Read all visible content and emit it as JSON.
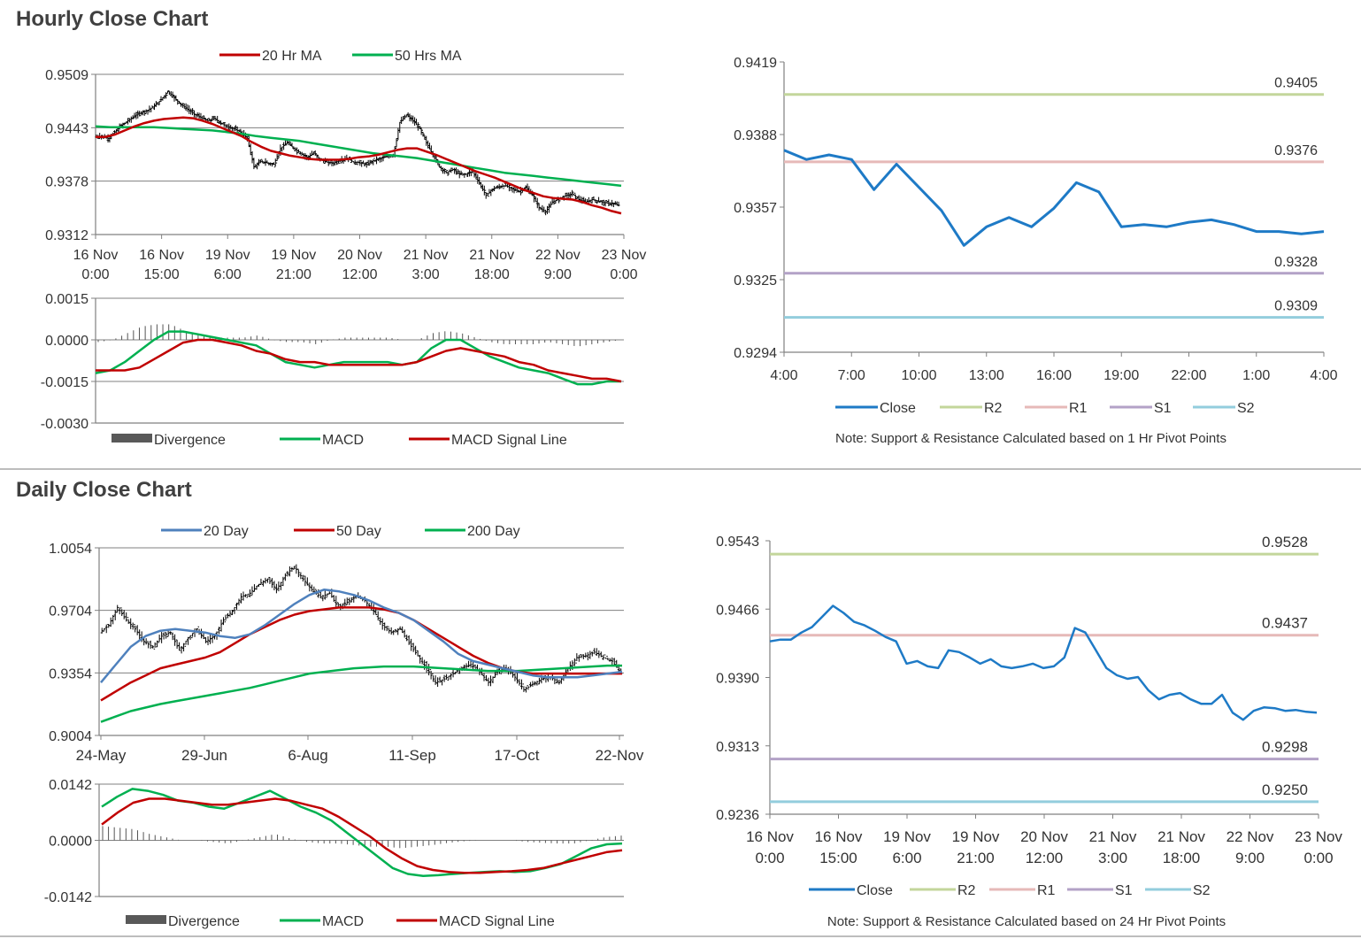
{
  "sections": {
    "hourly_title": "Hourly Close Chart",
    "daily_title": "Daily Close Chart"
  },
  "colors": {
    "red": "#c00000",
    "green": "#00b050",
    "blue": "#4f81bd",
    "closeBlue": "#1e7ac6",
    "r2": "#c3d69b",
    "r1": "#e6b9b8",
    "s1": "#b3a2c7",
    "s2": "#93cddd",
    "grid": "#808080"
  },
  "chart_data": [
    {
      "id": "hourly_price",
      "type": "line",
      "legend": [
        "20 Hr MA",
        "50 Hrs MA"
      ],
      "y_ticks": [
        "0.9509",
        "0.9443",
        "0.9378",
        "0.9312"
      ],
      "ylim": [
        0.9312,
        0.9509
      ],
      "x_ticks": [
        [
          "16 Nov",
          "0:00"
        ],
        [
          "16 Nov",
          "15:00"
        ],
        [
          "19 Nov",
          "6:00"
        ],
        [
          "19 Nov",
          "21:00"
        ],
        [
          "20 Nov",
          "12:00"
        ],
        [
          "21 Nov",
          "3:00"
        ],
        [
          "21 Nov",
          "18:00"
        ],
        [
          "22 Nov",
          "9:00"
        ],
        [
          "23 Nov",
          "0:00"
        ]
      ],
      "series": [
        {
          "name": "Close",
          "values": [
            0.9432,
            0.9433,
            0.943,
            0.9438,
            0.9446,
            0.9452,
            0.9458,
            0.9462,
            0.9465,
            0.947,
            0.9478,
            0.9488,
            0.948,
            0.9472,
            0.9466,
            0.946,
            0.9456,
            0.9452,
            0.9455,
            0.9449,
            0.9445,
            0.9442,
            0.9438,
            0.943,
            0.9395,
            0.9402,
            0.94,
            0.9398,
            0.9418,
            0.9425,
            0.9418,
            0.9412,
            0.9407,
            0.9412,
            0.9404,
            0.9401,
            0.94,
            0.9403,
            0.9406,
            0.9401,
            0.94,
            0.9398,
            0.9403,
            0.9405,
            0.9408,
            0.941,
            0.945,
            0.9459,
            0.9452,
            0.9442,
            0.9425,
            0.941,
            0.9395,
            0.9388,
            0.9392,
            0.9386,
            0.9386,
            0.939,
            0.9375,
            0.936,
            0.9368,
            0.9371,
            0.9372,
            0.9368,
            0.9365,
            0.937,
            0.936,
            0.9345,
            0.934,
            0.9352,
            0.9356,
            0.936,
            0.9362,
            0.9355,
            0.9352,
            0.9355,
            0.9353,
            0.9351,
            0.935,
            0.9348
          ]
        },
        {
          "name": "20 Hr MA",
          "values": [
            0.9432,
            0.9432,
            0.9435,
            0.944,
            0.9445,
            0.9449,
            0.9452,
            0.9454,
            0.9455,
            0.9456,
            0.9455,
            0.9452,
            0.9448,
            0.9443,
            0.9438,
            0.9433,
            0.9426,
            0.942,
            0.9415,
            0.9412,
            0.9409,
            0.9407,
            0.9405,
            0.9404,
            0.9404,
            0.9404,
            0.9405,
            0.9407,
            0.9408,
            0.941,
            0.9413,
            0.9416,
            0.9418,
            0.9418,
            0.9414,
            0.941,
            0.9405,
            0.94,
            0.9395,
            0.939,
            0.9386,
            0.9382,
            0.9377,
            0.9372,
            0.9367,
            0.9363,
            0.9359,
            0.9357,
            0.9356,
            0.9355,
            0.9352,
            0.9348,
            0.9345,
            0.9341,
            0.9338
          ]
        },
        {
          "name": "50 Hrs MA",
          "values": [
            0.9445,
            0.9444,
            0.9444,
            0.9444,
            0.9444,
            0.9443,
            0.9442,
            0.9441,
            0.944,
            0.9438,
            0.9436,
            0.9433,
            0.9431,
            0.9429,
            0.9427,
            0.9424,
            0.9421,
            0.9418,
            0.9415,
            0.9412,
            0.941,
            0.9408,
            0.9406,
            0.9403,
            0.94,
            0.9397,
            0.9394,
            0.9391,
            0.9388,
            0.9386,
            0.9384,
            0.9382,
            0.938,
            0.9378,
            0.9376,
            0.9374,
            0.9372
          ]
        }
      ]
    },
    {
      "id": "hourly_macd",
      "type": "line",
      "legend": [
        "Divergence",
        "MACD",
        "MACD  Signal Line"
      ],
      "y_ticks": [
        "0.0015",
        "0.0000",
        "-0.0015",
        "-0.0030"
      ],
      "ylim": [
        -0.003,
        0.0015
      ],
      "series": [
        {
          "name": "MACD",
          "values": [
            -0.0012,
            -0.0011,
            -0.0008,
            -0.0004,
            0.0,
            0.0003,
            0.0003,
            0.0002,
            0.0001,
            0.0,
            -0.0001,
            -0.0002,
            -0.0005,
            -0.0008,
            -0.0009,
            -0.001,
            -0.0009,
            -0.0008,
            -0.0008,
            -0.0008,
            -0.0008,
            -0.0009,
            -0.0008,
            -0.0003,
            0.0,
            0.0,
            -0.0003,
            -0.0006,
            -0.0008,
            -0.001,
            -0.0011,
            -0.0012,
            -0.0014,
            -0.0016,
            -0.0016,
            -0.0015,
            -0.0015
          ]
        },
        {
          "name": "MACD  Signal Line",
          "values": [
            -0.0011,
            -0.0011,
            -0.0011,
            -0.001,
            -0.0007,
            -0.0004,
            -0.0001,
            0.0,
            0.0,
            -0.0001,
            -0.0002,
            -0.0004,
            -0.0005,
            -0.0007,
            -0.0008,
            -0.0008,
            -0.0009,
            -0.0009,
            -0.0009,
            -0.0009,
            -0.0009,
            -0.0009,
            -0.0008,
            -0.0006,
            -0.0004,
            -0.0003,
            -0.0004,
            -0.0005,
            -0.0006,
            -0.0008,
            -0.0009,
            -0.0011,
            -0.0012,
            -0.0013,
            -0.0014,
            -0.0014,
            -0.0015
          ]
        }
      ]
    },
    {
      "id": "hourly_pivot",
      "type": "line",
      "legend": [
        "Close",
        "R2",
        "R1",
        "S1",
        "S2"
      ],
      "note": "Note: Support & Resistance Calculated based on 1 Hr Pivot Points",
      "y_ticks": [
        "0.9419",
        "0.9388",
        "0.9357",
        "0.9325",
        "0.9294"
      ],
      "ylim": [
        0.9294,
        0.9419
      ],
      "x_ticks": [
        "4:00",
        "7:00",
        "10:00",
        "13:00",
        "16:00",
        "19:00",
        "22:00",
        "1:00",
        "4:00"
      ],
      "levels": [
        {
          "name": "R2",
          "value": 0.9405,
          "label": "0.9405"
        },
        {
          "name": "R1",
          "value": 0.9376,
          "label": "0.9376"
        },
        {
          "name": "S1",
          "value": 0.9328,
          "label": "0.9328"
        },
        {
          "name": "S2",
          "value": 0.9309,
          "label": "0.9309"
        }
      ],
      "series": [
        {
          "name": "Close",
          "x": [
            0,
            1,
            2,
            3,
            4,
            5,
            6,
            7,
            8,
            9,
            10,
            11,
            12,
            13,
            14,
            15,
            16,
            17,
            18,
            19,
            20,
            21,
            22,
            23,
            24
          ],
          "values": [
            0.9381,
            0.9377,
            0.9379,
            0.9377,
            0.9364,
            0.9375,
            0.9365,
            0.9355,
            0.934,
            0.9348,
            0.9352,
            0.9348,
            0.9356,
            0.9367,
            0.9363,
            0.9348,
            0.9349,
            0.9348,
            0.935,
            0.9351,
            0.9349,
            0.9346,
            0.9346,
            0.9345,
            0.9346
          ]
        }
      ]
    },
    {
      "id": "daily_price",
      "type": "line",
      "legend": [
        "20 Day",
        "50 Day",
        "200 Day"
      ],
      "y_ticks": [
        "1.0054",
        "0.9704",
        "0.9354",
        "0.9004"
      ],
      "ylim": [
        0.9004,
        1.0054
      ],
      "x_ticks": [
        "24-May",
        "29-Jun",
        "6-Aug",
        "11-Sep",
        "17-Oct",
        "22-Nov"
      ],
      "series": [
        {
          "name": "Close",
          "values": [
            0.958,
            0.962,
            0.972,
            0.965,
            0.96,
            0.953,
            0.95,
            0.956,
            0.958,
            0.948,
            0.955,
            0.96,
            0.953,
            0.956,
            0.965,
            0.97,
            0.978,
            0.98,
            0.985,
            0.988,
            0.982,
            0.99,
            0.995,
            0.988,
            0.982,
            0.978,
            0.98,
            0.972,
            0.975,
            0.978,
            0.976,
            0.97,
            0.962,
            0.958,
            0.96,
            0.952,
            0.945,
            0.938,
            0.93,
            0.932,
            0.935,
            0.938,
            0.94,
            0.936,
            0.93,
            0.936,
            0.938,
            0.933,
            0.926,
            0.929,
            0.932,
            0.933,
            0.93,
            0.938,
            0.944,
            0.945,
            0.947,
            0.944,
            0.942,
            0.935
          ]
        },
        {
          "name": "20 Day",
          "values": [
            0.93,
            0.94,
            0.95,
            0.956,
            0.959,
            0.96,
            0.959,
            0.958,
            0.956,
            0.955,
            0.957,
            0.962,
            0.968,
            0.974,
            0.979,
            0.982,
            0.981,
            0.979,
            0.976,
            0.972,
            0.969,
            0.965,
            0.959,
            0.953,
            0.946,
            0.942,
            0.94,
            0.938,
            0.936,
            0.934,
            0.933,
            0.933,
            0.933,
            0.934,
            0.935,
            0.936
          ]
        },
        {
          "name": "50 Day",
          "values": [
            0.92,
            0.925,
            0.93,
            0.934,
            0.938,
            0.94,
            0.942,
            0.944,
            0.947,
            0.952,
            0.957,
            0.961,
            0.965,
            0.968,
            0.97,
            0.971,
            0.972,
            0.972,
            0.972,
            0.971,
            0.969,
            0.965,
            0.96,
            0.955,
            0.95,
            0.945,
            0.941,
            0.938,
            0.936,
            0.935,
            0.935,
            0.935,
            0.935,
            0.935,
            0.935,
            0.935
          ]
        },
        {
          "name": "200 Day",
          "values": [
            0.908,
            0.911,
            0.914,
            0.916,
            0.918,
            0.9195,
            0.921,
            0.9225,
            0.924,
            0.9255,
            0.927,
            0.929,
            0.931,
            0.933,
            0.935,
            0.936,
            0.937,
            0.938,
            0.9385,
            0.939,
            0.939,
            0.939,
            0.9385,
            0.938,
            0.9375,
            0.937,
            0.9365,
            0.9365,
            0.9365,
            0.937,
            0.9375,
            0.938,
            0.9385,
            0.939,
            0.9395,
            0.9395
          ]
        }
      ]
    },
    {
      "id": "daily_macd",
      "type": "line",
      "legend": [
        "Divergence",
        "MACD",
        "MACD Signal Line"
      ],
      "y_ticks": [
        "0.0142",
        "0.0000",
        "-0.0142"
      ],
      "ylim": [
        -0.0142,
        0.0142
      ],
      "series": [
        {
          "name": "MACD",
          "values": [
            0.0085,
            0.011,
            0.013,
            0.0125,
            0.0115,
            0.01,
            0.0095,
            0.0085,
            0.008,
            0.0095,
            0.011,
            0.0125,
            0.0105,
            0.0085,
            0.007,
            0.005,
            0.002,
            -0.001,
            -0.004,
            -0.007,
            -0.0085,
            -0.009,
            -0.0088,
            -0.0085,
            -0.0082,
            -0.008,
            -0.0078,
            -0.008,
            -0.0078,
            -0.007,
            -0.006,
            -0.004,
            -0.002,
            -0.001,
            -0.0008
          ]
        },
        {
          "name": "MACD Signal Line",
          "values": [
            0.004,
            0.007,
            0.0095,
            0.0105,
            0.0105,
            0.01,
            0.0095,
            0.009,
            0.009,
            0.0095,
            0.01,
            0.0105,
            0.01,
            0.009,
            0.008,
            0.006,
            0.0035,
            0.001,
            -0.002,
            -0.0045,
            -0.0065,
            -0.0075,
            -0.008,
            -0.0082,
            -0.0082,
            -0.008,
            -0.0078,
            -0.0075,
            -0.007,
            -0.006,
            -0.005,
            -0.004,
            -0.003,
            -0.0025
          ]
        }
      ]
    },
    {
      "id": "daily_pivot",
      "type": "line",
      "legend": [
        "Close",
        "R2",
        "R1",
        "S1",
        "S2"
      ],
      "note": "Note: Support & Resistance Calculated based on 24 Hr Pivot Points",
      "y_ticks": [
        "0.9543",
        "0.9466",
        "0.9390",
        "0.9313",
        "0.9236"
      ],
      "ylim": [
        0.9236,
        0.9543
      ],
      "x_ticks": [
        [
          "16 Nov",
          "0:00"
        ],
        [
          "16 Nov",
          "15:00"
        ],
        [
          "19 Nov",
          "6:00"
        ],
        [
          "19 Nov",
          "21:00"
        ],
        [
          "20 Nov",
          "12:00"
        ],
        [
          "21 Nov",
          "3:00"
        ],
        [
          "21 Nov",
          "18:00"
        ],
        [
          "22 Nov",
          "9:00"
        ],
        [
          "23 Nov",
          "0:00"
        ]
      ],
      "levels": [
        {
          "name": "R2",
          "value": 0.9528,
          "label": "0.9528"
        },
        {
          "name": "S1",
          "value": 0.9298,
          "label": "0.9298"
        },
        {
          "name": "R1",
          "value": 0.9437,
          "label": "0.9437"
        },
        {
          "name": "S2",
          "value": 0.925,
          "label": "0.9250"
        }
      ],
      "series": [
        {
          "name": "Close",
          "values": [
            0.943,
            0.9432,
            0.9432,
            0.944,
            0.9446,
            0.9458,
            0.947,
            0.9462,
            0.9452,
            0.9448,
            0.9442,
            0.9435,
            0.943,
            0.9405,
            0.9408,
            0.9402,
            0.94,
            0.942,
            0.9418,
            0.9412,
            0.9405,
            0.941,
            0.9402,
            0.94,
            0.9402,
            0.9405,
            0.94,
            0.9402,
            0.9412,
            0.9445,
            0.944,
            0.942,
            0.94,
            0.9392,
            0.9388,
            0.939,
            0.9375,
            0.9365,
            0.937,
            0.9372,
            0.9365,
            0.936,
            0.936,
            0.937,
            0.935,
            0.9342,
            0.9352,
            0.9356,
            0.9355,
            0.9352,
            0.9353,
            0.9351,
            0.935
          ]
        }
      ]
    }
  ]
}
